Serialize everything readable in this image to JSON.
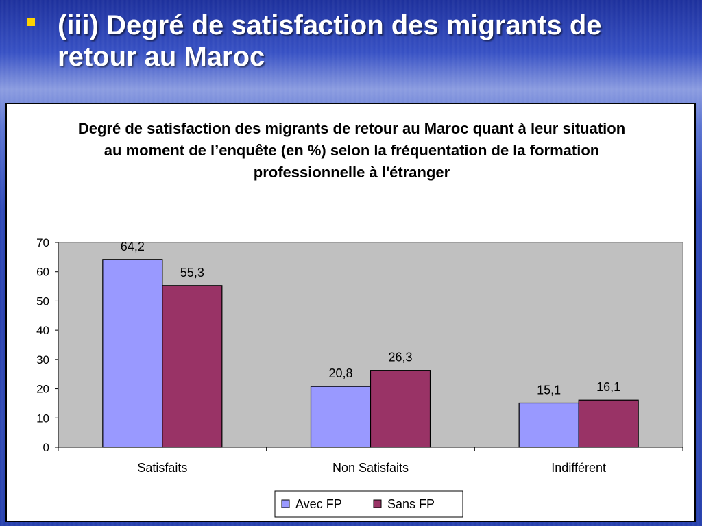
{
  "slide": {
    "bullet_icon": "square-bullet-icon",
    "title": "(iii) Degré de satisfaction des migrants de retour au Maroc"
  },
  "chart_data": {
    "type": "bar",
    "title": "Degré de satisfaction des migrants de retour au Maroc quant à leur situation au moment de l’enquête (en %) selon la fréquentation de la formation professionnelle à l'étranger",
    "categories": [
      "Satisfaits",
      "Non Satisfaits",
      "Indifférent"
    ],
    "series": [
      {
        "name": "Avec FP",
        "color": "#9999ff",
        "values": [
          64.2,
          20.8,
          15.1
        ],
        "labels": [
          "64,2",
          "20,8",
          "15,1"
        ]
      },
      {
        "name": "Sans FP",
        "color": "#993366",
        "values": [
          55.3,
          26.3,
          16.1
        ],
        "labels": [
          "55,3",
          "26,3",
          "16,1"
        ]
      }
    ],
    "ylim": [
      0,
      70
    ],
    "yticks": [
      "0",
      "10",
      "20",
      "30",
      "40",
      "50",
      "60",
      "70"
    ],
    "xlabel": "",
    "ylabel": "",
    "grid": false,
    "plot_background": "#c0c0c0",
    "legend_position": "bottom"
  }
}
